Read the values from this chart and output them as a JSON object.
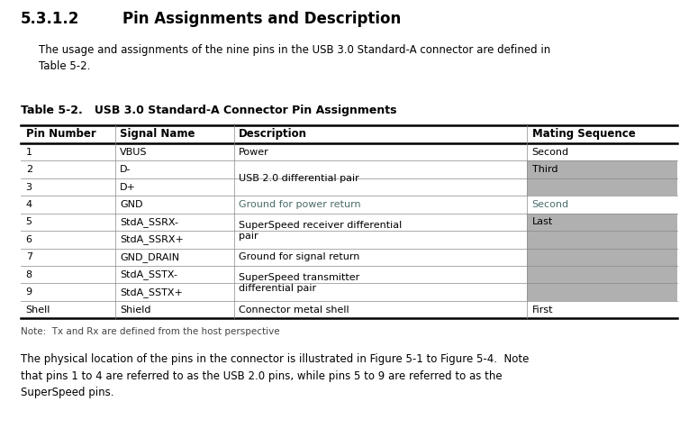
{
  "section_number": "5.3.1.2",
  "section_title": "Pin Assignments and Description",
  "intro_text": "The usage and assignments of the nine pins in the USB 3.0 Standard-A connector are defined in\nTable 5-2.",
  "table_title": "Table 5-2.   USB 3.0 Standard-A Connector Pin Assignments",
  "col_headers": [
    "Pin Number",
    "Signal Name",
    "Description",
    "Mating Sequence"
  ],
  "note_text": "Note:  Tx and Rx are defined from the host perspective",
  "footer_text": "The physical location of the pins in the connector is illustrated in Figure 5-1 to Figure 5-4.  Note\nthat pins 1 to 4 are referred to as the USB 2.0 pins, while pins 5 to 9 are referred to as the\nSuperSpeed pins.",
  "bg_color": "#ffffff",
  "gray_mating": "#b0b0b0",
  "text_black": "#000000",
  "text_teal": "#4a6b6b",
  "pin_col_texts": [
    "1",
    "2",
    "3",
    "4",
    "5",
    "6",
    "7",
    "8",
    "9",
    "Shell"
  ],
  "signal_col_texts": [
    "VBUS",
    "D-",
    "D+",
    "GND",
    "StdA_SSRX-",
    "StdA_SSRX+",
    "GND_DRAIN",
    "StdA_SSTX-",
    "StdA_SSTX+",
    "Shield"
  ]
}
